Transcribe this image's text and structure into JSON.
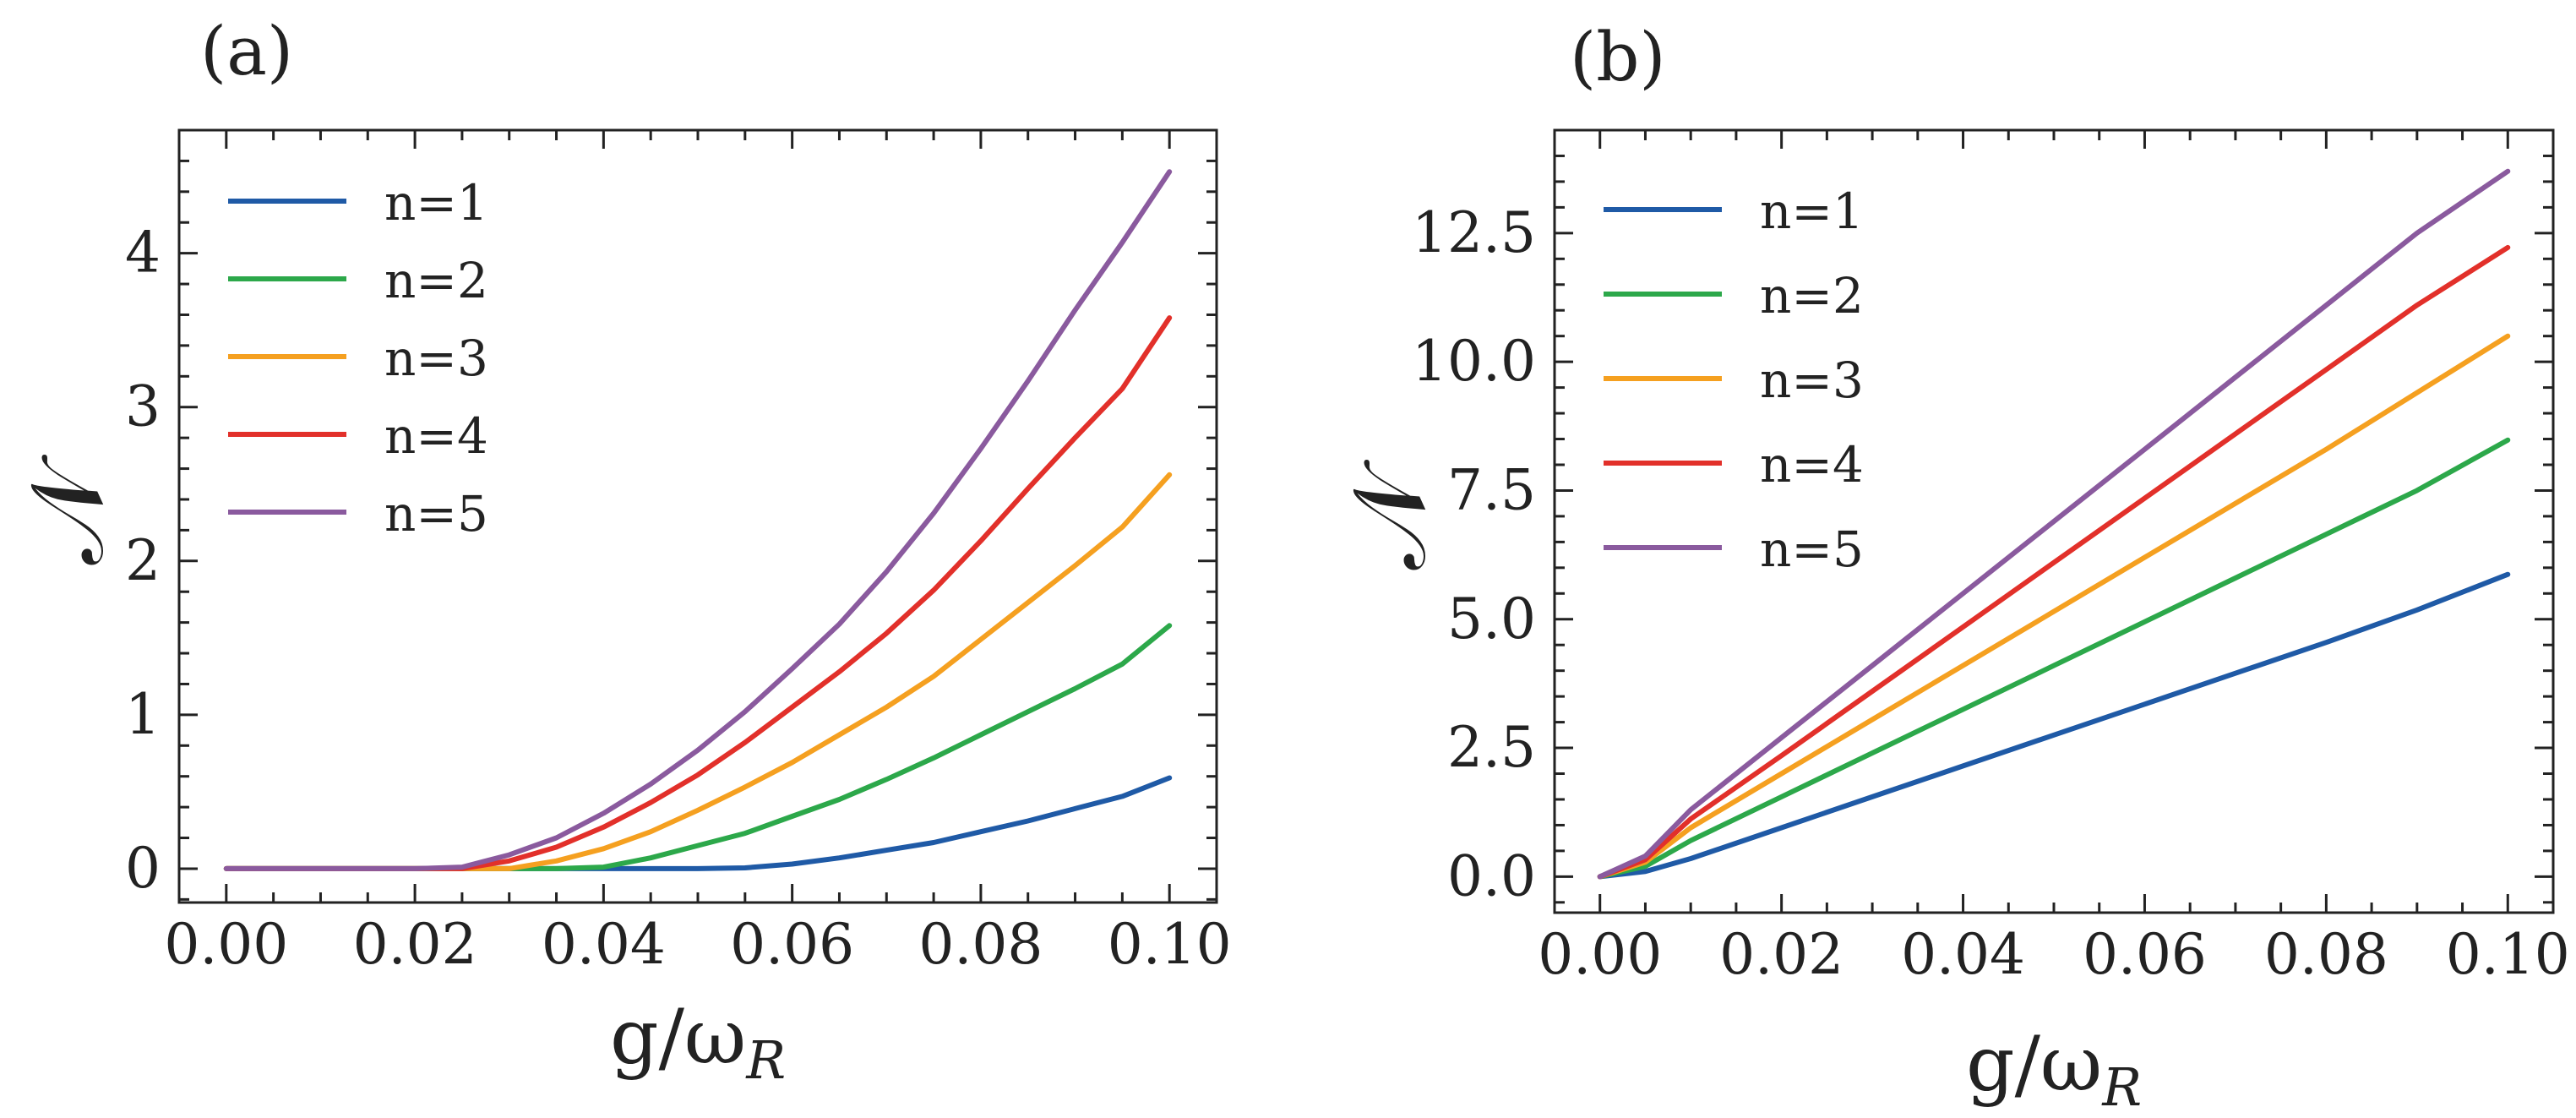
{
  "chart_data": [
    {
      "panel_label": "(a)",
      "type": "line",
      "xlabel": "g/ω",
      "xlabel_sub": "R",
      "ylabel": "𝒩",
      "xlim": [
        -0.005,
        0.105
      ],
      "ylim": [
        -0.22,
        4.8
      ],
      "xticks": [
        0.0,
        0.02,
        0.04,
        0.06,
        0.08,
        0.1
      ],
      "xtick_labels": [
        "0.00",
        "0.02",
        "0.04",
        "0.06",
        "0.08",
        "0.10"
      ],
      "yticks": [
        0,
        1,
        2,
        3,
        4
      ],
      "ytick_labels": [
        "0",
        "1",
        "2",
        "3",
        "4"
      ],
      "legend_position": "top-left",
      "x": [
        0.0,
        0.005,
        0.01,
        0.015,
        0.02,
        0.025,
        0.03,
        0.035,
        0.04,
        0.045,
        0.05,
        0.055,
        0.06,
        0.065,
        0.07,
        0.075,
        0.08,
        0.085,
        0.09,
        0.095,
        0.1
      ],
      "series": [
        {
          "name": "n=1",
          "color": "#1f5aa6",
          "values": [
            0,
            0,
            0,
            0,
            0,
            0,
            0,
            0,
            0,
            0,
            0,
            0.005,
            0.03,
            0.07,
            0.12,
            0.17,
            0.24,
            0.31,
            0.39,
            0.47,
            0.59
          ]
        },
        {
          "name": "n=2",
          "color": "#2ca84a",
          "values": [
            0,
            0,
            0,
            0,
            0,
            0,
            0,
            0,
            0.01,
            0.07,
            0.15,
            0.23,
            0.34,
            0.45,
            0.58,
            0.72,
            0.87,
            1.02,
            1.17,
            1.33,
            1.58
          ]
        },
        {
          "name": "n=3",
          "color": "#f5a020",
          "values": [
            0,
            0,
            0,
            0,
            0,
            0,
            0,
            0.05,
            0.13,
            0.24,
            0.38,
            0.53,
            0.69,
            0.87,
            1.05,
            1.25,
            1.49,
            1.73,
            1.97,
            2.22,
            2.56
          ]
        },
        {
          "name": "n=4",
          "color": "#e2302a",
          "values": [
            0,
            0,
            0,
            0,
            0,
            0,
            0.05,
            0.14,
            0.27,
            0.43,
            0.61,
            0.82,
            1.05,
            1.28,
            1.53,
            1.81,
            2.13,
            2.47,
            2.8,
            3.12,
            3.58
          ]
        },
        {
          "name": "n=5",
          "color": "#8a5a9e",
          "values": [
            0,
            0,
            0,
            0,
            0,
            0.01,
            0.09,
            0.2,
            0.36,
            0.55,
            0.77,
            1.02,
            1.3,
            1.59,
            1.93,
            2.31,
            2.73,
            3.17,
            3.63,
            4.07,
            4.53
          ]
        }
      ]
    },
    {
      "panel_label": "(b)",
      "type": "line",
      "xlabel": "g/ω",
      "xlabel_sub": "R",
      "ylabel": "𝒩",
      "xlim": [
        -0.005,
        0.105
      ],
      "ylim": [
        -0.7,
        14.5
      ],
      "xticks": [
        0.0,
        0.02,
        0.04,
        0.06,
        0.08,
        0.1
      ],
      "xtick_labels": [
        "0.00",
        "0.02",
        "0.04",
        "0.06",
        "0.08",
        "0.10"
      ],
      "yticks": [
        0.0,
        2.5,
        5.0,
        7.5,
        10.0,
        12.5
      ],
      "ytick_labels": [
        "0.0",
        "2.5",
        "5.0",
        "7.5",
        "10.0",
        "12.5"
      ],
      "legend_position": "top-left",
      "x": [
        0.0,
        0.005,
        0.01,
        0.02,
        0.03,
        0.04,
        0.05,
        0.06,
        0.07,
        0.08,
        0.09,
        0.1
      ],
      "series": [
        {
          "name": "n=1",
          "color": "#1f5aa6",
          "values": [
            0,
            0.1,
            0.35,
            0.95,
            1.55,
            2.15,
            2.75,
            3.35,
            3.95,
            4.55,
            5.18,
            5.87
          ]
        },
        {
          "name": "n=2",
          "color": "#2ca84a",
          "values": [
            0,
            0.2,
            0.7,
            1.55,
            2.4,
            3.25,
            4.1,
            4.95,
            5.8,
            6.65,
            7.5,
            8.48
          ]
        },
        {
          "name": "n=3",
          "color": "#f5a020",
          "values": [
            0,
            0.28,
            0.95,
            2.0,
            3.05,
            4.1,
            5.15,
            6.2,
            7.25,
            8.3,
            9.4,
            10.5
          ]
        },
        {
          "name": "n=4",
          "color": "#e2302a",
          "values": [
            0,
            0.33,
            1.12,
            2.35,
            3.6,
            4.85,
            6.1,
            7.35,
            8.6,
            9.85,
            11.1,
            12.22
          ]
        },
        {
          "name": "n=5",
          "color": "#8a5a9e",
          "values": [
            0,
            0.4,
            1.3,
            2.7,
            4.1,
            5.5,
            6.9,
            8.3,
            9.7,
            11.1,
            12.5,
            13.7
          ]
        }
      ]
    }
  ]
}
